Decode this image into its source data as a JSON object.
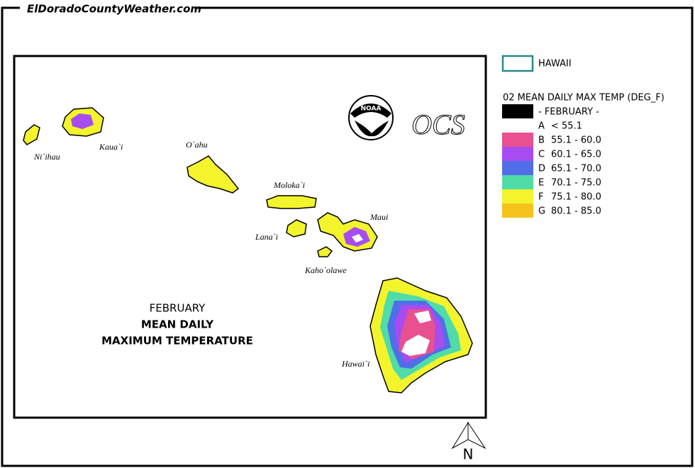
{
  "header": {
    "site": "ElDoradoCountyWeather.com"
  },
  "map": {
    "title": [
      "FEBRUARY",
      "MEAN DAILY",
      "MAXIMUM TEMPERATURE"
    ],
    "islands": [
      "Ni`ihau",
      "Kaua`i",
      "O`ahu",
      "Moloka`i",
      "Lana`i",
      "Maui",
      "Kaho`olawe",
      "Hawai`i"
    ],
    "logos": {
      "noaa": "NOAA",
      "ocs": "OCS"
    },
    "north": "N"
  },
  "legend": {
    "region": "HAWAII",
    "title": "02 MEAN DAILY MAX TEMP (DEG_F)",
    "entries": [
      {
        "label": "- FEBRUARY -",
        "color": "#000000"
      },
      {
        "code": "A",
        "range": "< 55.1",
        "color": "#ffffff"
      },
      {
        "code": "B",
        "range": "55.1 - 60.0",
        "color": "#e8508f"
      },
      {
        "code": "C",
        "range": "60.1 - 65.0",
        "color": "#a64cf0"
      },
      {
        "code": "D",
        "range": "65.1 - 70.0",
        "color": "#4f6ee8"
      },
      {
        "code": "E",
        "range": "70.1 - 75.0",
        "color": "#4fdca8"
      },
      {
        "code": "F",
        "range": "75.1 - 80.0",
        "color": "#f4f42c"
      },
      {
        "code": "G",
        "range": "80.1 - 85.0",
        "color": "#f6c21c"
      }
    ]
  }
}
